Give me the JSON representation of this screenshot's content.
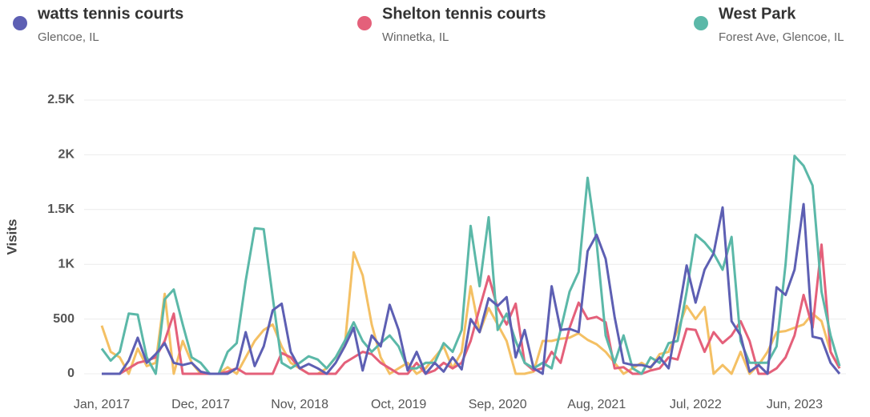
{
  "chart_data": {
    "type": "line",
    "y_label": "Visits",
    "categories": [
      "Jan, 2017",
      null,
      null,
      null,
      null,
      null,
      null,
      null,
      null,
      null,
      null,
      "Dec, 2017",
      null,
      null,
      null,
      null,
      null,
      null,
      null,
      null,
      null,
      null,
      "Nov, 2018",
      null,
      null,
      null,
      null,
      null,
      null,
      null,
      null,
      null,
      null,
      "Oct, 2019",
      null,
      null,
      null,
      null,
      null,
      null,
      null,
      null,
      null,
      null,
      "Sep, 2020",
      null,
      null,
      null,
      null,
      null,
      null,
      null,
      null,
      null,
      null,
      "Aug, 2021",
      null,
      null,
      null,
      null,
      null,
      null,
      null,
      null,
      null,
      null,
      "Jul, 2022",
      null,
      null,
      null,
      null,
      null,
      null,
      null,
      null,
      null,
      null,
      "Jun, 2023",
      null,
      null,
      null,
      null,
      null
    ],
    "ylim": [
      0,
      2500
    ],
    "yticks": [
      0,
      500,
      {
        "value": 1000,
        "label": "1K"
      },
      {
        "value": 1500,
        "label": "1.5K"
      },
      {
        "value": 2000,
        "label": "2K"
      },
      {
        "value": 2500,
        "label": "2.5K"
      }
    ],
    "grid": true,
    "series": [
      {
        "color": "#f4c064",
        "values": [
          440,
          200,
          150,
          0,
          230,
          70,
          100,
          730,
          0,
          300,
          100,
          0,
          0,
          0,
          60,
          0,
          150,
          300,
          400,
          450,
          250,
          100,
          50,
          0,
          0,
          50,
          150,
          250,
          1110,
          900,
          450,
          150,
          0,
          50,
          100,
          0,
          50,
          150,
          250,
          50,
          200,
          800,
          380,
          600,
          450,
          300,
          0,
          0,
          20,
          300,
          300,
          320,
          330,
          370,
          310,
          270,
          200,
          100,
          0,
          50,
          100,
          50,
          180,
          200,
          400,
          620,
          500,
          610,
          0,
          80,
          0,
          200,
          0,
          80,
          200,
          380,
          390,
          420,
          450,
          550,
          480,
          200,
          50
        ]
      },
      {
        "name": "Shelton tennis courts",
        "location": "Winnetka, IL",
        "color": "#e4607a",
        "values": [
          0,
          0,
          0,
          50,
          100,
          120,
          150,
          300,
          550,
          0,
          0,
          0,
          0,
          0,
          20,
          50,
          0,
          0,
          0,
          0,
          190,
          150,
          50,
          0,
          0,
          0,
          0,
          100,
          150,
          200,
          180,
          100,
          50,
          0,
          0,
          100,
          0,
          30,
          100,
          50,
          100,
          300,
          600,
          890,
          600,
          450,
          640,
          100,
          30,
          50,
          200,
          100,
          420,
          650,
          500,
          520,
          470,
          50,
          60,
          0,
          0,
          30,
          50,
          150,
          130,
          410,
          400,
          200,
          380,
          280,
          350,
          480,
          300,
          0,
          0,
          50,
          150,
          350,
          720,
          420,
          1180,
          200,
          50
        ]
      },
      {
        "name": "West Park",
        "location": "Forest Ave, Glencoe, IL",
        "color": "#5bb8a8",
        "values": [
          230,
          120,
          200,
          550,
          540,
          150,
          0,
          680,
          770,
          450,
          150,
          100,
          0,
          0,
          200,
          280,
          850,
          1330,
          1320,
          700,
          100,
          50,
          100,
          160,
          130,
          50,
          150,
          300,
          470,
          300,
          200,
          280,
          350,
          250,
          50,
          50,
          100,
          100,
          280,
          200,
          400,
          1350,
          800,
          1430,
          400,
          550,
          300,
          100,
          50,
          100,
          50,
          400,
          750,
          930,
          1790,
          1200,
          350,
          100,
          350,
          50,
          0,
          150,
          100,
          280,
          300,
          750,
          1270,
          1200,
          1100,
          950,
          1250,
          300,
          100,
          100,
          100,
          250,
          1000,
          1990,
          1900,
          1720,
          750,
          350,
          70
        ]
      },
      {
        "name": "watts tennis courts",
        "location": "Glencoe, IL",
        "color": "#5d5fb3",
        "values": [
          0,
          0,
          0,
          120,
          330,
          100,
          180,
          280,
          100,
          80,
          100,
          20,
          0,
          0,
          0,
          50,
          380,
          70,
          250,
          580,
          640,
          200,
          50,
          90,
          50,
          0,
          100,
          250,
          420,
          30,
          350,
          250,
          630,
          400,
          30,
          200,
          0,
          100,
          20,
          150,
          40,
          500,
          380,
          690,
          620,
          700,
          150,
          400,
          50,
          0,
          800,
          400,
          410,
          380,
          1120,
          1270,
          1050,
          520,
          100,
          80,
          80,
          60,
          150,
          50,
          500,
          990,
          650,
          950,
          1100,
          1520,
          480,
          350,
          20,
          80,
          0,
          790,
          720,
          950,
          1550,
          340,
          320,
          100,
          0
        ]
      }
    ],
    "legend_order": [
      3,
      1,
      2
    ]
  }
}
